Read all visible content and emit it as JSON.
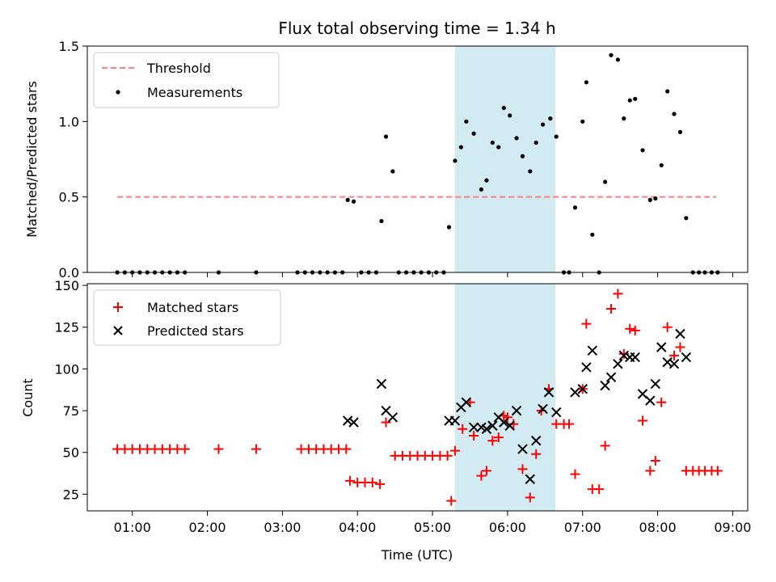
{
  "figure": {
    "title": "Flux total observing time = 1.34 h",
    "xlabel": "Time (UTC)",
    "x_ticks": [
      "01:00",
      "02:00",
      "03:00",
      "04:00",
      "05:00",
      "06:00",
      "07:00",
      "08:00",
      "09:00"
    ],
    "x_tick_values": [
      1.0,
      2.0,
      3.0,
      4.0,
      5.0,
      6.0,
      7.0,
      8.0,
      9.0
    ],
    "xlim": [
      0.4,
      9.2
    ],
    "highlight_span": [
      5.3,
      6.64
    ],
    "highlight_color": "#add8e6"
  },
  "chart_data": [
    {
      "type": "scatter",
      "ylabel": "Matched/Predicted stars",
      "ylim": [
        0,
        1.5
      ],
      "y_ticks": [
        "0.0",
        "0.5",
        "1.0",
        "1.5"
      ],
      "y_tick_values": [
        0.0,
        0.5,
        1.0,
        1.5
      ],
      "legend_position": "top-left",
      "threshold": {
        "name": "Threshold",
        "value": 0.5,
        "x_range": [
          0.8,
          8.78
        ],
        "color": "#ff7f7f"
      },
      "series": [
        {
          "name": "Measurements",
          "color": "#000000",
          "marker": "dot",
          "points": [
            [
              0.8,
              0
            ],
            [
              0.9,
              0
            ],
            [
              1.0,
              0
            ],
            [
              1.1,
              0
            ],
            [
              1.2,
              0
            ],
            [
              1.3,
              0
            ],
            [
              1.4,
              0
            ],
            [
              1.5,
              0
            ],
            [
              1.6,
              0
            ],
            [
              1.7,
              0
            ],
            [
              2.15,
              0
            ],
            [
              2.65,
              0
            ],
            [
              3.2,
              0
            ],
            [
              3.3,
              0
            ],
            [
              3.4,
              0
            ],
            [
              3.5,
              0
            ],
            [
              3.6,
              0
            ],
            [
              3.7,
              0
            ],
            [
              3.8,
              0
            ],
            [
              3.87,
              0.48
            ],
            [
              3.95,
              0.47
            ],
            [
              4.05,
              0
            ],
            [
              4.15,
              0
            ],
            [
              4.25,
              0
            ],
            [
              4.32,
              0.34
            ],
            [
              4.38,
              0.9
            ],
            [
              4.47,
              0.67
            ],
            [
              4.55,
              0
            ],
            [
              4.65,
              0
            ],
            [
              4.75,
              0
            ],
            [
              4.85,
              0
            ],
            [
              4.95,
              0
            ],
            [
              5.05,
              0
            ],
            [
              5.15,
              0
            ],
            [
              5.22,
              0.3
            ],
            [
              5.3,
              0.74
            ],
            [
              5.38,
              0.83
            ],
            [
              5.45,
              1.0
            ],
            [
              5.55,
              0.92
            ],
            [
              5.65,
              0.55
            ],
            [
              5.72,
              0.61
            ],
            [
              5.8,
              0.86
            ],
            [
              5.88,
              0.83
            ],
            [
              5.95,
              1.09
            ],
            [
              6.03,
              1.04
            ],
            [
              6.12,
              0.89
            ],
            [
              6.2,
              0.77
            ],
            [
              6.3,
              0.67
            ],
            [
              6.38,
              0.86
            ],
            [
              6.47,
              0.98
            ],
            [
              6.57,
              1.02
            ],
            [
              6.65,
              0.9
            ],
            [
              6.75,
              0
            ],
            [
              6.82,
              0
            ],
            [
              6.9,
              0.43
            ],
            [
              7.0,
              1.0
            ],
            [
              7.05,
              1.26
            ],
            [
              7.13,
              0.25
            ],
            [
              7.22,
              0
            ],
            [
              7.3,
              0.6
            ],
            [
              7.38,
              1.44
            ],
            [
              7.47,
              1.41
            ],
            [
              7.55,
              1.02
            ],
            [
              7.63,
              1.14
            ],
            [
              7.7,
              1.15
            ],
            [
              7.8,
              0.81
            ],
            [
              7.9,
              0.48
            ],
            [
              7.97,
              0.49
            ],
            [
              8.05,
              0.71
            ],
            [
              8.13,
              1.2
            ],
            [
              8.22,
              1.05
            ],
            [
              8.3,
              0.93
            ],
            [
              8.38,
              0.36
            ],
            [
              8.47,
              0
            ],
            [
              8.55,
              0
            ],
            [
              8.63,
              0
            ],
            [
              8.72,
              0
            ],
            [
              8.8,
              0
            ]
          ]
        }
      ]
    },
    {
      "type": "scatter",
      "ylabel": "Count",
      "ylim": [
        15,
        151
      ],
      "y_ticks": [
        "25",
        "50",
        "75",
        "100",
        "125",
        "150"
      ],
      "y_tick_values": [
        25,
        50,
        75,
        100,
        125,
        150
      ],
      "legend_position": "top-left",
      "series": [
        {
          "name": "Matched stars",
          "color": "#ff0000",
          "marker": "plus",
          "points": [
            [
              0.8,
              52
            ],
            [
              0.9,
              52
            ],
            [
              1.0,
              52
            ],
            [
              1.1,
              52
            ],
            [
              1.2,
              52
            ],
            [
              1.3,
              52
            ],
            [
              1.4,
              52
            ],
            [
              1.5,
              52
            ],
            [
              1.6,
              52
            ],
            [
              1.7,
              52
            ],
            [
              2.15,
              52
            ],
            [
              2.65,
              52
            ],
            [
              3.25,
              52
            ],
            [
              3.35,
              52
            ],
            [
              3.45,
              52
            ],
            [
              3.55,
              52
            ],
            [
              3.65,
              52
            ],
            [
              3.75,
              52
            ],
            [
              3.85,
              52
            ],
            [
              3.9,
              33
            ],
            [
              4.0,
              32
            ],
            [
              4.1,
              32
            ],
            [
              4.2,
              32
            ],
            [
              4.3,
              31
            ],
            [
              4.38,
              68
            ],
            [
              4.5,
              48
            ],
            [
              4.6,
              48
            ],
            [
              4.7,
              48
            ],
            [
              4.8,
              48
            ],
            [
              4.9,
              48
            ],
            [
              5.0,
              48
            ],
            [
              5.1,
              48
            ],
            [
              5.2,
              48
            ],
            [
              5.25,
              21
            ],
            [
              5.3,
              51
            ],
            [
              5.4,
              64
            ],
            [
              5.5,
              80
            ],
            [
              5.55,
              60
            ],
            [
              5.65,
              36
            ],
            [
              5.72,
              39
            ],
            [
              5.8,
              57
            ],
            [
              5.88,
              59
            ],
            [
              5.95,
              72
            ],
            [
              6.0,
              71
            ],
            [
              6.08,
              67
            ],
            [
              6.2,
              40
            ],
            [
              6.3,
              23
            ],
            [
              6.38,
              49
            ],
            [
              6.45,
              75
            ],
            [
              6.55,
              88
            ],
            [
              6.65,
              67
            ],
            [
              6.75,
              67
            ],
            [
              6.82,
              67
            ],
            [
              6.9,
              37
            ],
            [
              7.0,
              88
            ],
            [
              7.05,
              127
            ],
            [
              7.13,
              28
            ],
            [
              7.22,
              28
            ],
            [
              7.3,
              54
            ],
            [
              7.38,
              136
            ],
            [
              7.47,
              145
            ],
            [
              7.55,
              109
            ],
            [
              7.63,
              124
            ],
            [
              7.7,
              123
            ],
            [
              7.8,
              69
            ],
            [
              7.9,
              39
            ],
            [
              7.97,
              45
            ],
            [
              8.05,
              80
            ],
            [
              8.13,
              125
            ],
            [
              8.22,
              108
            ],
            [
              8.3,
              113
            ],
            [
              8.38,
              39
            ],
            [
              8.47,
              39
            ],
            [
              8.55,
              39
            ],
            [
              8.63,
              39
            ],
            [
              8.72,
              39
            ],
            [
              8.8,
              39
            ]
          ]
        },
        {
          "name": "Predicted stars",
          "color": "#000000",
          "marker": "x",
          "points": [
            [
              3.87,
              69
            ],
            [
              3.95,
              68
            ],
            [
              4.32,
              91
            ],
            [
              4.38,
              75
            ],
            [
              4.47,
              71
            ],
            [
              5.22,
              69
            ],
            [
              5.3,
              69
            ],
            [
              5.38,
              77
            ],
            [
              5.45,
              80
            ],
            [
              5.55,
              65
            ],
            [
              5.65,
              65
            ],
            [
              5.72,
              64
            ],
            [
              5.8,
              66
            ],
            [
              5.88,
              71
            ],
            [
              5.95,
              68
            ],
            [
              6.03,
              66
            ],
            [
              6.12,
              75
            ],
            [
              6.2,
              52
            ],
            [
              6.3,
              34
            ],
            [
              6.38,
              57
            ],
            [
              6.47,
              76
            ],
            [
              6.55,
              86
            ],
            [
              6.65,
              74
            ],
            [
              6.9,
              86
            ],
            [
              7.0,
              88
            ],
            [
              7.05,
              101
            ],
            [
              7.13,
              111
            ],
            [
              7.3,
              90
            ],
            [
              7.38,
              95
            ],
            [
              7.47,
              103
            ],
            [
              7.55,
              108
            ],
            [
              7.63,
              107
            ],
            [
              7.7,
              107
            ],
            [
              7.8,
              85
            ],
            [
              7.9,
              81
            ],
            [
              7.97,
              91
            ],
            [
              8.05,
              113
            ],
            [
              8.13,
              104
            ],
            [
              8.22,
              103
            ],
            [
              8.3,
              121
            ],
            [
              8.38,
              107
            ]
          ]
        }
      ]
    }
  ]
}
